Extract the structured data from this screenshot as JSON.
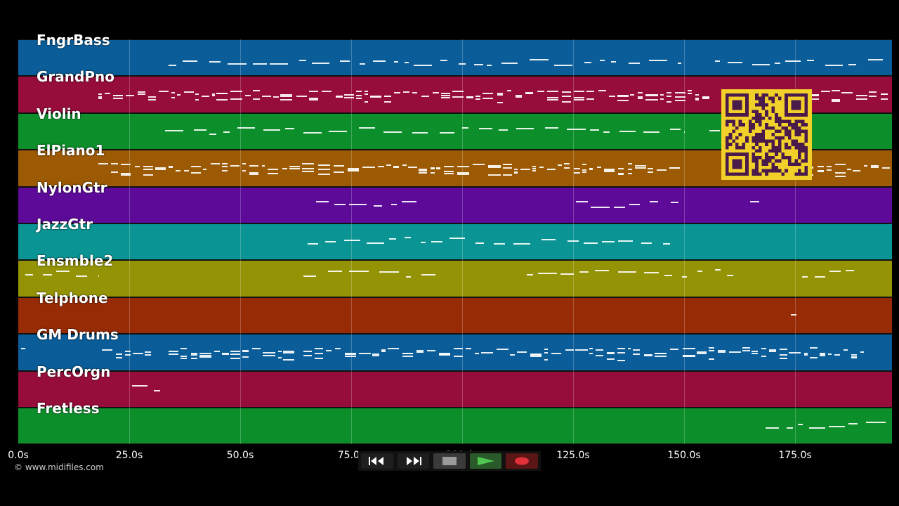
{
  "tracks": [
    {
      "name": "FngrBass",
      "color": "#0a5d98"
    },
    {
      "name": "GrandPno",
      "color": "#960c3a"
    },
    {
      "name": "Violin",
      "color": "#0c8f2b"
    },
    {
      "name": "ElPiano1",
      "color": "#9c5a05"
    },
    {
      "name": "NylonGtr",
      "color": "#5c0a97"
    },
    {
      "name": "JazzGtr",
      "color": "#0a9493"
    },
    {
      "name": "Ensmble2",
      "color": "#949305"
    },
    {
      "name": "Telphone",
      "color": "#962b05"
    },
    {
      "name": "GM Drums",
      "color": "#0a5d98"
    },
    {
      "name": "PercOrgn",
      "color": "#960c3a"
    },
    {
      "name": "Fretless",
      "color": "#0c8f2b"
    }
  ],
  "time_axis": {
    "ticks": [
      "0.0s",
      "25.0s",
      "50.0s",
      "75.0s",
      "100.0s",
      "125.0s",
      "150.0s",
      "175.0s"
    ]
  },
  "credit": "© www.midifiles.com",
  "transport": {
    "rewind_icon": "rewind-icon",
    "forward_icon": "fast-forward-icon",
    "stop_icon": "stop-icon",
    "play_icon": "play-icon",
    "record_icon": "record-icon"
  },
  "qr_color": "#f2d02a"
}
